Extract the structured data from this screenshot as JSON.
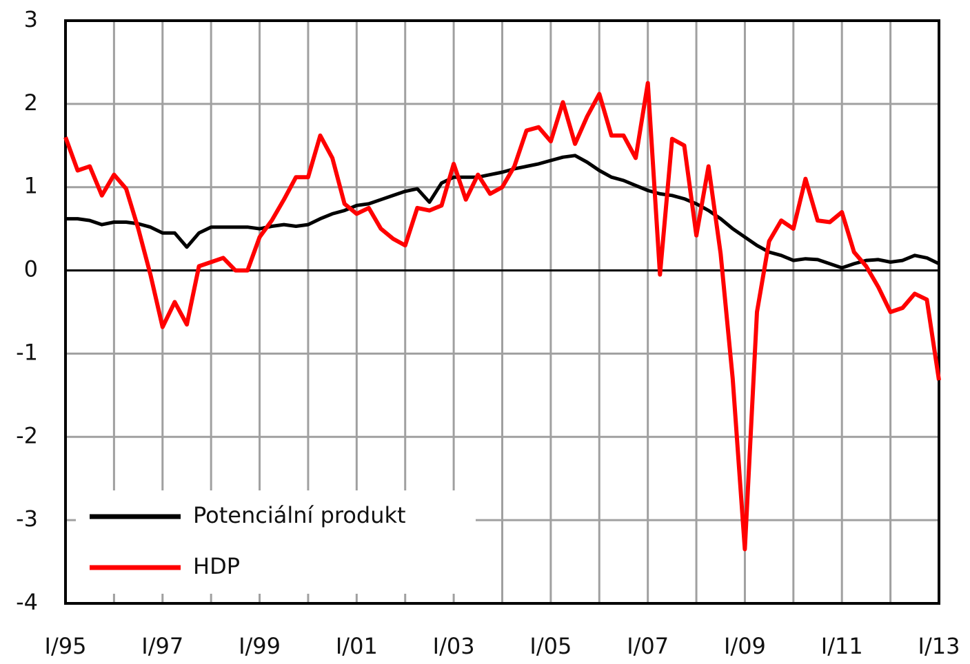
{
  "chart_data": {
    "type": "line",
    "categories": [
      "I/95",
      null,
      null,
      null,
      null,
      null,
      null,
      null,
      "I/97",
      null,
      null,
      null,
      null,
      null,
      null,
      null,
      "I/99",
      null,
      null,
      null,
      null,
      null,
      null,
      null,
      "I/01",
      null,
      null,
      null,
      null,
      null,
      null,
      null,
      "I/03",
      null,
      null,
      null,
      null,
      null,
      null,
      null,
      "I/05",
      null,
      null,
      null,
      null,
      null,
      null,
      null,
      "I/07",
      null,
      null,
      null,
      null,
      null,
      null,
      null,
      "I/09",
      null,
      null,
      null,
      null,
      null,
      null,
      null,
      "I/11",
      null,
      null,
      null,
      null,
      null,
      null,
      null,
      "I/13"
    ],
    "series": [
      {
        "name": "Potenciální produkt",
        "color": "#000000",
        "values": [
          0.62,
          0.62,
          0.6,
          0.55,
          0.58,
          0.58,
          0.56,
          0.52,
          0.45,
          0.45,
          0.28,
          0.45,
          0.52,
          0.52,
          0.52,
          0.52,
          0.5,
          0.53,
          0.55,
          0.53,
          0.55,
          0.62,
          0.68,
          0.72,
          0.78,
          0.8,
          0.85,
          0.9,
          0.95,
          0.98,
          0.82,
          1.05,
          1.12,
          1.12,
          1.12,
          1.15,
          1.18,
          1.22,
          1.25,
          1.28,
          1.32,
          1.36,
          1.38,
          1.3,
          1.2,
          1.12,
          1.08,
          1.02,
          0.96,
          0.92,
          0.9,
          0.86,
          0.8,
          0.72,
          0.62,
          0.5,
          0.4,
          0.3,
          0.22,
          0.18,
          0.12,
          0.14,
          0.13,
          0.08,
          0.03,
          0.08,
          0.12,
          0.13,
          0.1,
          0.12,
          0.18,
          0.15,
          0.08
        ]
      },
      {
        "name": "HDP",
        "color": "#ff0000",
        "values": [
          1.6,
          1.2,
          1.25,
          0.9,
          1.15,
          0.98,
          0.5,
          -0.05,
          -0.68,
          -0.38,
          -0.65,
          0.05,
          0.1,
          0.15,
          0.0,
          0.0,
          0.4,
          0.6,
          0.85,
          1.12,
          1.12,
          1.62,
          1.35,
          0.8,
          0.68,
          0.75,
          0.5,
          0.38,
          0.3,
          0.75,
          0.72,
          0.78,
          1.28,
          0.85,
          1.15,
          0.92,
          1.0,
          1.25,
          1.68,
          1.72,
          1.55,
          2.02,
          1.52,
          1.85,
          2.12,
          1.62,
          1.62,
          1.35,
          2.25,
          -0.05,
          1.58,
          1.5,
          0.42,
          1.25,
          0.2,
          -1.3,
          -3.35,
          -0.5,
          0.35,
          0.6,
          0.5,
          1.1,
          0.6,
          0.58,
          0.7,
          0.22,
          0.05,
          -0.2,
          -0.5,
          -0.45,
          -0.28,
          -0.35,
          -1.32
        ]
      }
    ],
    "ylim": [
      -4,
      3
    ],
    "yticks": [
      3,
      2,
      1,
      0,
      -1,
      -2,
      -3,
      -4
    ],
    "grid": true,
    "legend": "lower left"
  }
}
